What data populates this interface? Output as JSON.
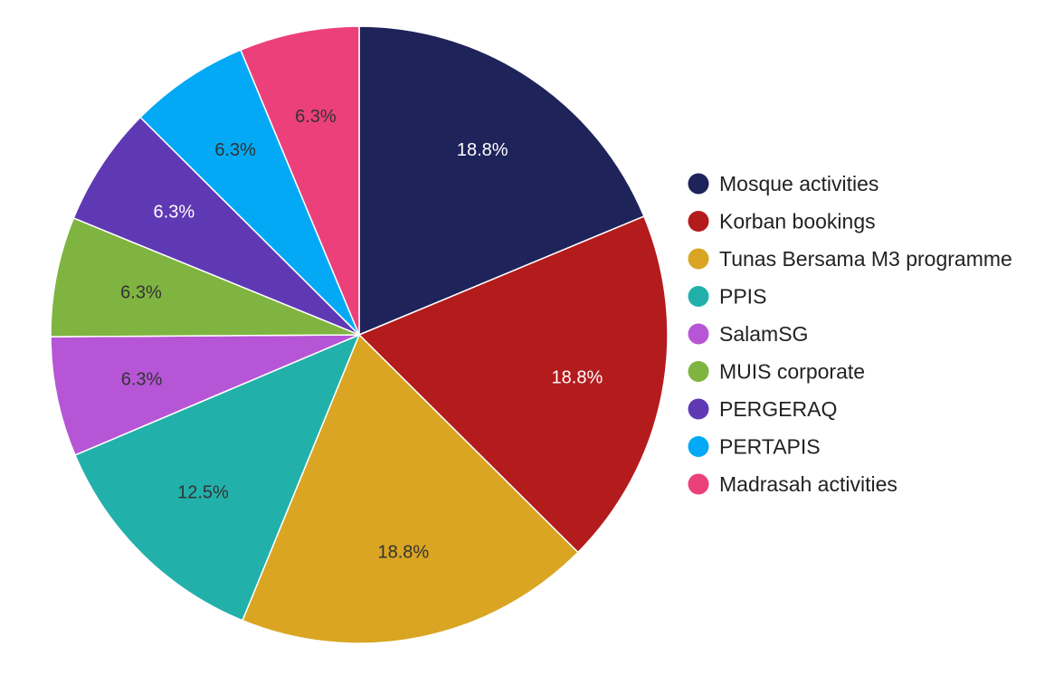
{
  "chart_data": {
    "type": "pie",
    "slices": [
      {
        "label": "Mosque activities",
        "value": 18.8,
        "display": "18.8%",
        "color": "#1e2359",
        "label_color": "#ffffff"
      },
      {
        "label": "Korban bookings",
        "value": 18.8,
        "display": "18.8%",
        "color": "#b41b1d",
        "label_color": "#ffffff"
      },
      {
        "label": "Tunas Bersama M3 programme",
        "value": 18.8,
        "display": "18.8%",
        "color": "#d9a522",
        "label_color": "#333333"
      },
      {
        "label": "PPIS",
        "value": 12.5,
        "display": "12.5%",
        "color": "#22b1aa",
        "label_color": "#333333"
      },
      {
        "label": "SalamSG",
        "value": 6.3,
        "display": "6.3%",
        "color": "#b656d6",
        "label_color": "#333333"
      },
      {
        "label": "MUIS corporate",
        "value": 6.3,
        "display": "6.3%",
        "color": "#7fb441",
        "label_color": "#333333"
      },
      {
        "label": "PERGERAQ",
        "value": 6.3,
        "display": "6.3%",
        "color": "#5f39b4",
        "label_color": "#ffffff"
      },
      {
        "label": "PERTAPIS",
        "value": 6.3,
        "display": "6.3%",
        "color": "#03a9f4",
        "label_color": "#333333"
      },
      {
        "label": "Madrasah activities",
        "value": 6.3,
        "display": "6.3%",
        "color": "#ec407a",
        "label_color": "#333333"
      }
    ],
    "legend_position": "right",
    "start_angle": "12 o'clock",
    "direction": "clockwise"
  }
}
